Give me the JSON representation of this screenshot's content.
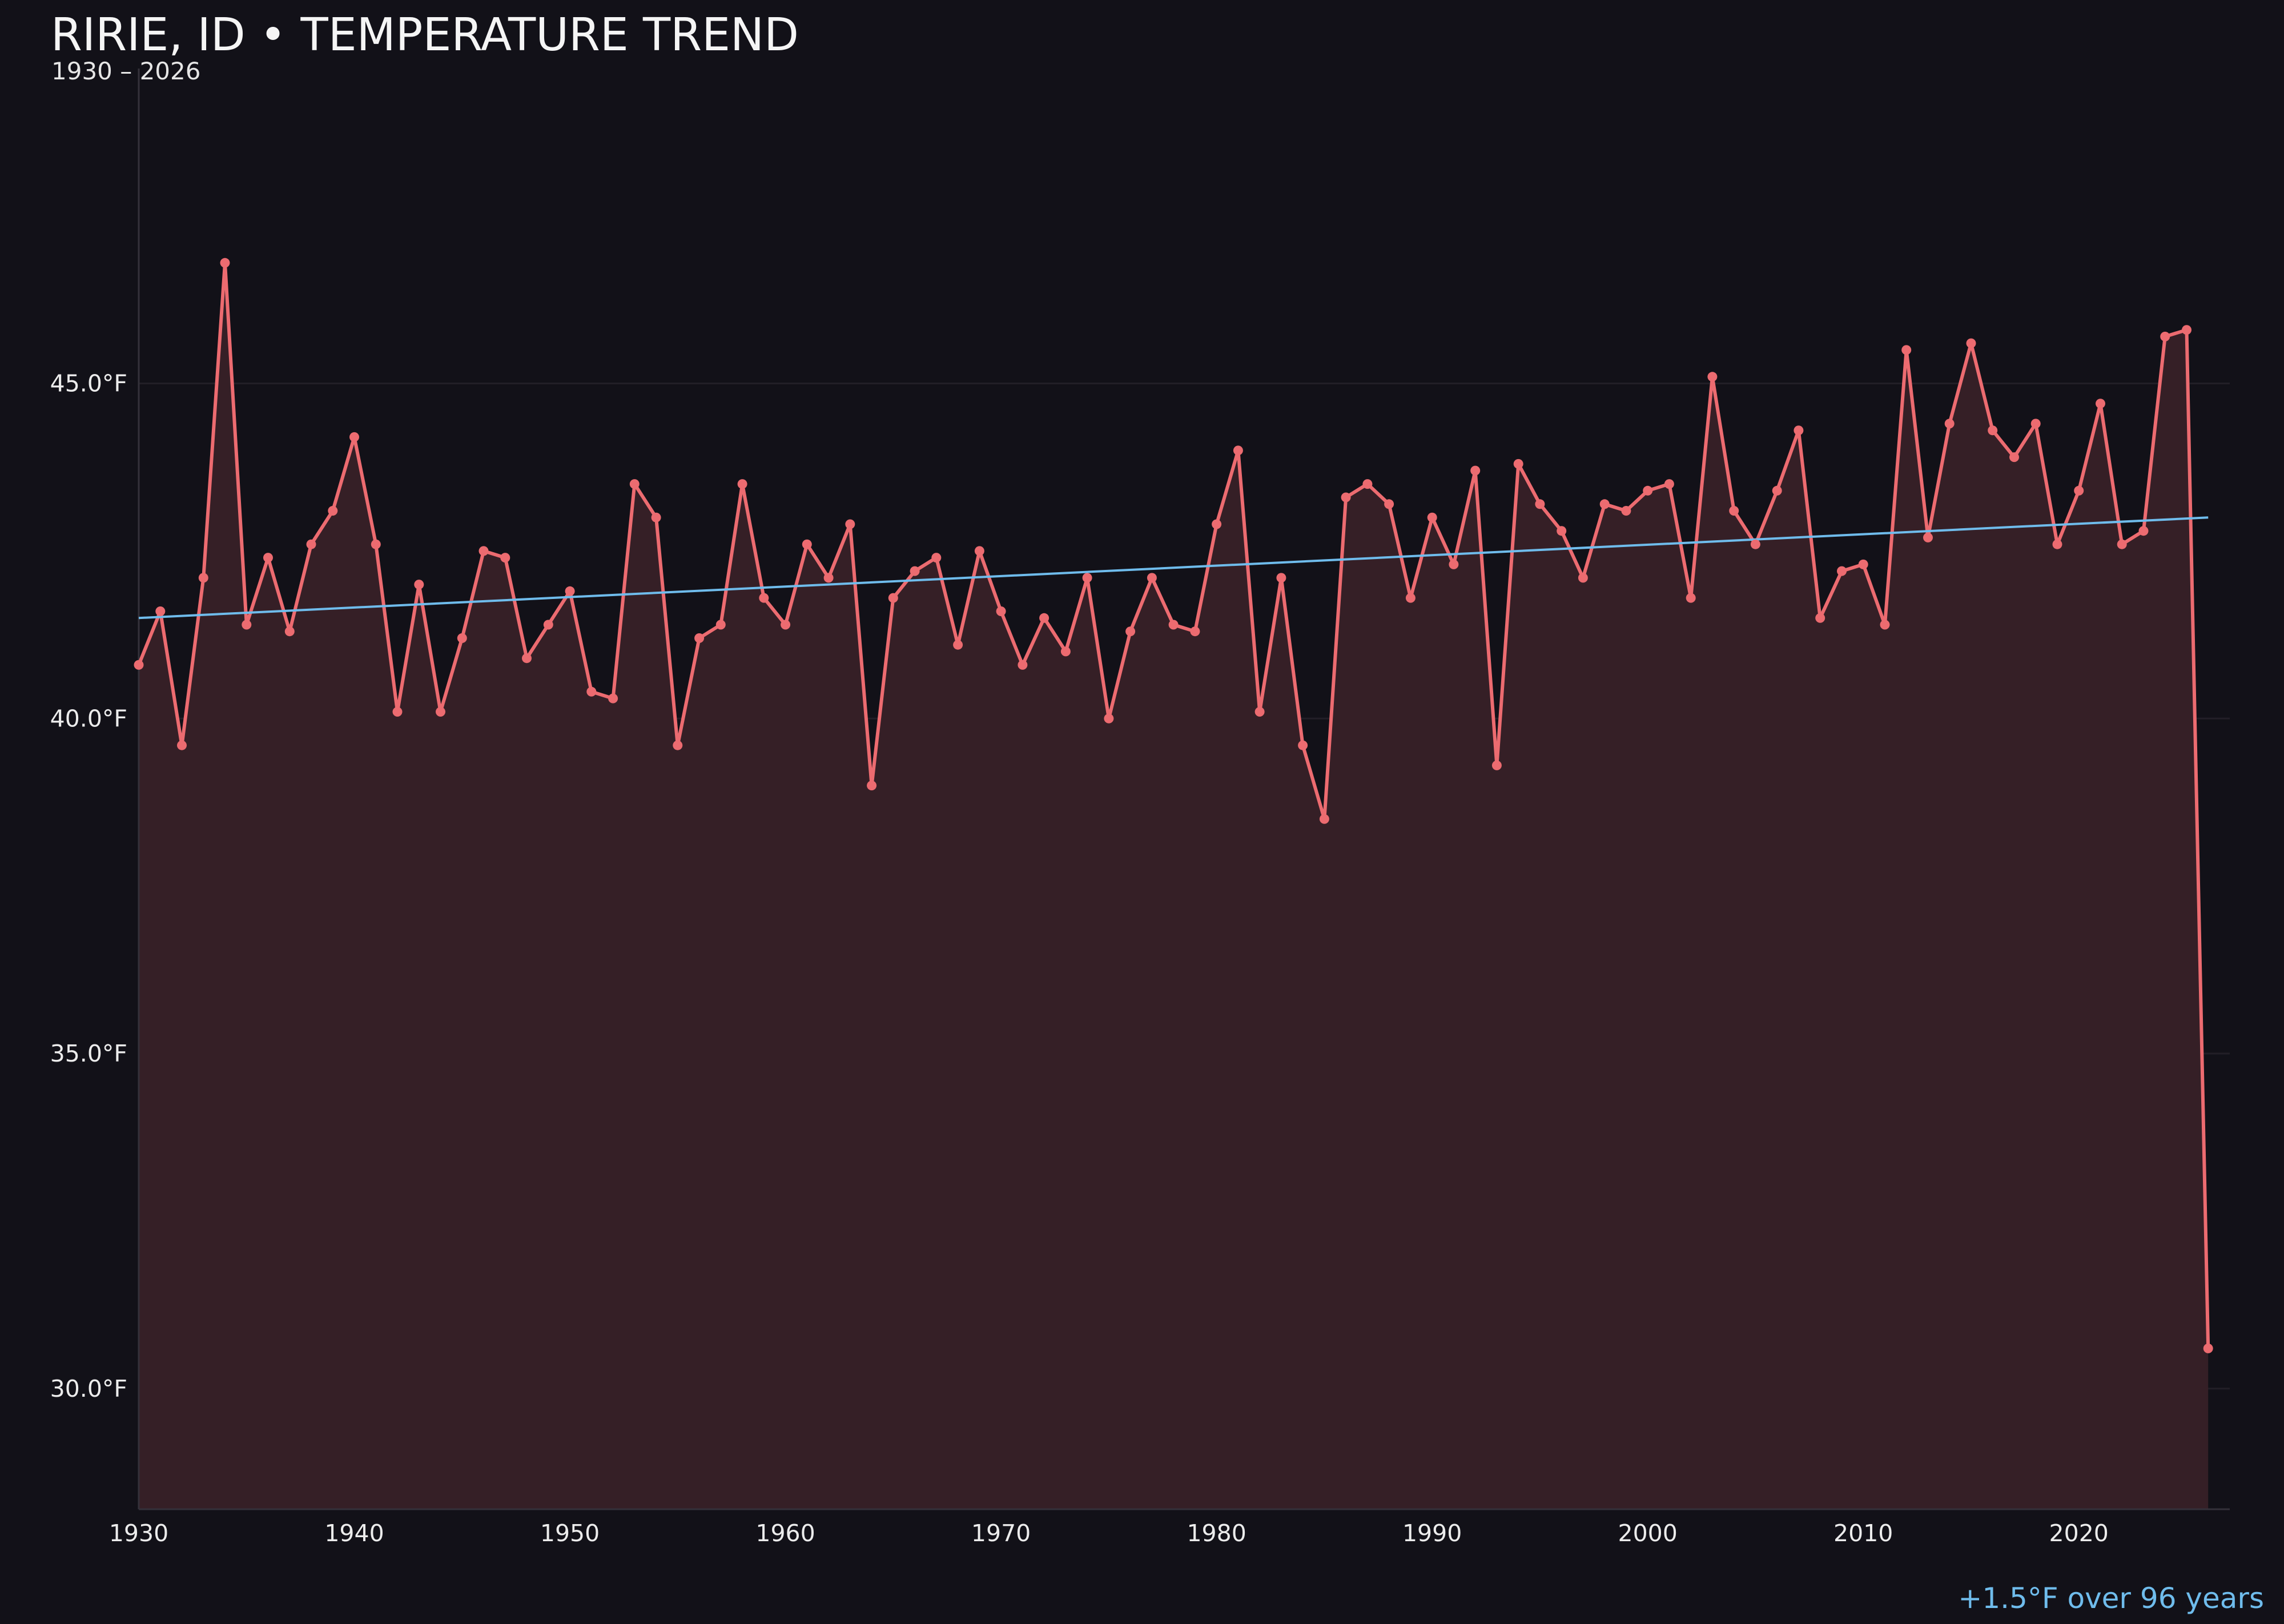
{
  "chart_data": {
    "type": "line",
    "title": "RIRIE, ID • TEMPERATURE TREND",
    "subtitle": "1930 – 2026",
    "xlabel": "",
    "ylabel": "",
    "annotation": "+1.5°F over 96 years",
    "ylim": [
      28.2,
      49.7
    ],
    "xlim": [
      1930,
      2027
    ],
    "grid": true,
    "yticks": [
      30,
      35,
      40,
      45
    ],
    "ytick_labels": [
      "30.0°F",
      "35.0°F",
      "40.0°F",
      "45.0°F"
    ],
    "xticks": [
      1930,
      1940,
      1950,
      1960,
      1970,
      1980,
      1990,
      2000,
      2010,
      2020
    ],
    "xtick_labels": [
      "1930",
      "1940",
      "1950",
      "1960",
      "1970",
      "1980",
      "1990",
      "2000",
      "2010",
      "2020"
    ],
    "colors": {
      "series": "#ec6b70",
      "fill": "#351f26",
      "trend": "#6fbcec",
      "background": "#121118",
      "grid": "#221f27",
      "axis": "#34313a"
    },
    "series": [
      {
        "x": [
          1930,
          1931,
          1932,
          1933,
          1934,
          1935,
          1936,
          1937,
          1938,
          1939,
          1940,
          1941,
          1942,
          1943,
          1944,
          1945,
          1946,
          1947,
          1948,
          1949,
          1950,
          1951,
          1952,
          1953,
          1954,
          1955,
          1956,
          1957,
          1958,
          1959,
          1960,
          1961,
          1962,
          1963,
          1964,
          1965,
          1966,
          1967,
          1968,
          1969,
          1970,
          1971,
          1972,
          1973,
          1974,
          1975,
          1976,
          1977,
          1978,
          1979,
          1980,
          1981,
          1982,
          1983,
          1984,
          1985,
          1986,
          1987,
          1988,
          1989,
          1990,
          1991,
          1992,
          1993,
          1994,
          1995,
          1996,
          1997,
          1998,
          1999,
          2000,
          2001,
          2002,
          2003,
          2004,
          2005,
          2006,
          2007,
          2008,
          2009,
          2010,
          2011,
          2012,
          2013,
          2014,
          2015,
          2016,
          2017,
          2018,
          2019,
          2020,
          2021,
          2022,
          2023,
          2024,
          2025,
          2026
        ],
        "values": [
          40.8,
          41.6,
          39.6,
          42.1,
          46.8,
          41.4,
          42.4,
          41.3,
          42.6,
          43.1,
          44.2,
          42.6,
          40.1,
          42.0,
          40.1,
          41.2,
          42.5,
          42.4,
          40.9,
          41.4,
          41.9,
          40.4,
          40.3,
          43.5,
          43.0,
          39.6,
          41.2,
          41.4,
          43.5,
          41.8,
          41.4,
          42.6,
          42.1,
          42.9,
          39.0,
          41.8,
          42.2,
          42.4,
          41.1,
          42.5,
          41.6,
          40.8,
          41.5,
          41.0,
          42.1,
          40.0,
          41.3,
          42.1,
          41.4,
          41.3,
          42.9,
          44.0,
          40.1,
          42.1,
          39.6,
          38.5,
          43.3,
          43.5,
          43.2,
          41.8,
          43.0,
          42.3,
          43.7,
          39.3,
          43.8,
          43.2,
          42.8,
          42.1,
          43.2,
          43.1,
          43.4,
          43.5,
          41.8,
          45.1,
          43.1,
          42.6,
          43.4,
          44.3,
          41.5,
          42.2,
          42.3,
          41.4,
          45.5,
          42.7,
          44.4,
          45.6,
          44.3,
          43.9,
          44.4,
          42.6,
          43.4,
          44.7,
          42.6,
          42.8,
          45.7,
          45.8,
          30.6
        ]
      }
    ],
    "trend": {
      "x": [
        1930,
        2026
      ],
      "values": [
        41.5,
        43.0
      ]
    }
  }
}
